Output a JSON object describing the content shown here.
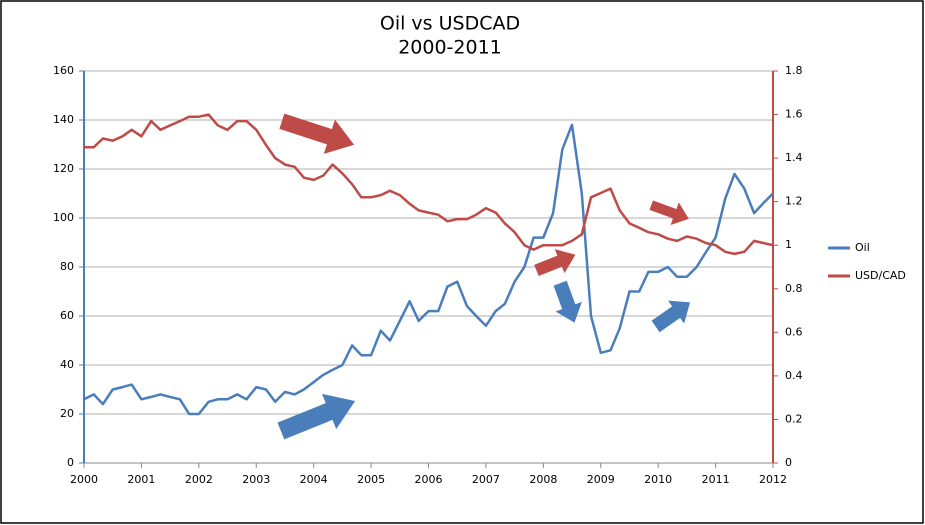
{
  "chart_data": {
    "type": "line",
    "title": "Oil vs USDCAD",
    "subtitle": "2000-2011",
    "x": [
      2000,
      2000.17,
      2000.33,
      2000.5,
      2000.67,
      2000.83,
      2001,
      2001.17,
      2001.33,
      2001.5,
      2001.67,
      2001.83,
      2002,
      2002.17,
      2002.33,
      2002.5,
      2002.67,
      2002.83,
      2003,
      2003.17,
      2003.33,
      2003.5,
      2003.67,
      2003.83,
      2004,
      2004.17,
      2004.33,
      2004.5,
      2004.67,
      2004.83,
      2005,
      2005.17,
      2005.33,
      2005.5,
      2005.67,
      2005.83,
      2006,
      2006.17,
      2006.33,
      2006.5,
      2006.67,
      2006.83,
      2007,
      2007.17,
      2007.33,
      2007.5,
      2007.67,
      2007.83,
      2008,
      2008.17,
      2008.33,
      2008.5,
      2008.67,
      2008.83,
      2009,
      2009.17,
      2009.33,
      2009.5,
      2009.67,
      2009.83,
      2010,
      2010.17,
      2010.33,
      2010.5,
      2010.67,
      2010.83,
      2011,
      2011.17,
      2011.33,
      2011.5,
      2011.67,
      2011.83,
      2012
    ],
    "series": [
      {
        "name": "Oil",
        "color": "#4a7ebb",
        "values": [
          26,
          28,
          24,
          30,
          31,
          32,
          26,
          27,
          28,
          27,
          26,
          20,
          20,
          25,
          26,
          26,
          28,
          26,
          31,
          30,
          25,
          29,
          28,
          30,
          33,
          36,
          38,
          40,
          48,
          44,
          44,
          54,
          50,
          58,
          66,
          58,
          62,
          62,
          72,
          74,
          64,
          60,
          56,
          62,
          65,
          74,
          80,
          92,
          92,
          102,
          128,
          138,
          110,
          60,
          45,
          46,
          55,
          70,
          70,
          78,
          78,
          80,
          76,
          76,
          80,
          86,
          92,
          108,
          118,
          112,
          102,
          106,
          110
        ]
      },
      {
        "name": "USD/CAD",
        "color": "#be4b48",
        "axis": "y2",
        "values": [
          1.45,
          1.45,
          1.49,
          1.48,
          1.5,
          1.53,
          1.5,
          1.57,
          1.53,
          1.55,
          1.57,
          1.59,
          1.59,
          1.6,
          1.55,
          1.53,
          1.57,
          1.57,
          1.53,
          1.46,
          1.4,
          1.37,
          1.36,
          1.31,
          1.3,
          1.32,
          1.37,
          1.33,
          1.28,
          1.22,
          1.22,
          1.23,
          1.25,
          1.23,
          1.19,
          1.16,
          1.15,
          1.14,
          1.11,
          1.12,
          1.12,
          1.14,
          1.17,
          1.15,
          1.1,
          1.06,
          1.0,
          0.98,
          1.0,
          1.0,
          1.0,
          1.02,
          1.05,
          1.22,
          1.24,
          1.26,
          1.16,
          1.1,
          1.08,
          1.06,
          1.05,
          1.03,
          1.02,
          1.04,
          1.03,
          1.01,
          1.0,
          0.97,
          0.96,
          0.97,
          1.02,
          1.01,
          1.0
        ]
      }
    ],
    "xlim": [
      2000,
      2012
    ],
    "xticks": [
      2000,
      2001,
      2002,
      2003,
      2004,
      2005,
      2006,
      2007,
      2008,
      2009,
      2010,
      2011,
      2012
    ],
    "ylim": [
      0,
      160
    ],
    "yticks": [
      0,
      20,
      40,
      60,
      80,
      100,
      120,
      140,
      160
    ],
    "y2lim": [
      0,
      1.8
    ],
    "y2ticks": [
      0,
      0.2,
      0.4,
      0.6,
      0.8,
      1,
      1.2,
      1.4,
      1.6,
      1.8
    ],
    "grid": true,
    "legend": "right"
  }
}
